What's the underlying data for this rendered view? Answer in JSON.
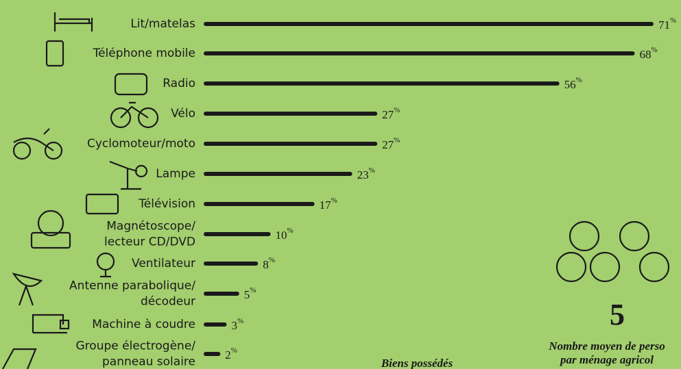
{
  "chart_data": {
    "type": "bar",
    "categories": [
      [
        "Lit/matelas"
      ],
      [
        "Téléphone mobile"
      ],
      [
        "Radio"
      ],
      [
        "Vélo"
      ],
      [
        "Cyclomoteur/moto"
      ],
      [
        "Lampe"
      ],
      [
        "Télévision"
      ],
      [
        "Magnétoscope/",
        "lecteur CD/DVD"
      ],
      [
        "Ventilateur"
      ],
      [
        "Antenne parabolique/",
        "décodeur"
      ],
      [
        "Machine à coudre"
      ],
      [
        "Groupe électrogène/",
        "panneau solaire"
      ]
    ],
    "values": [
      71,
      68,
      56,
      27,
      27,
      23,
      17,
      10,
      8,
      5,
      3,
      2
    ],
    "unit": "%",
    "color": "#1a1a1a",
    "annotations": [
      "5",
      "Nombre moyen de perso",
      "par ménage agricol",
      "Biens possédés"
    ]
  }
}
